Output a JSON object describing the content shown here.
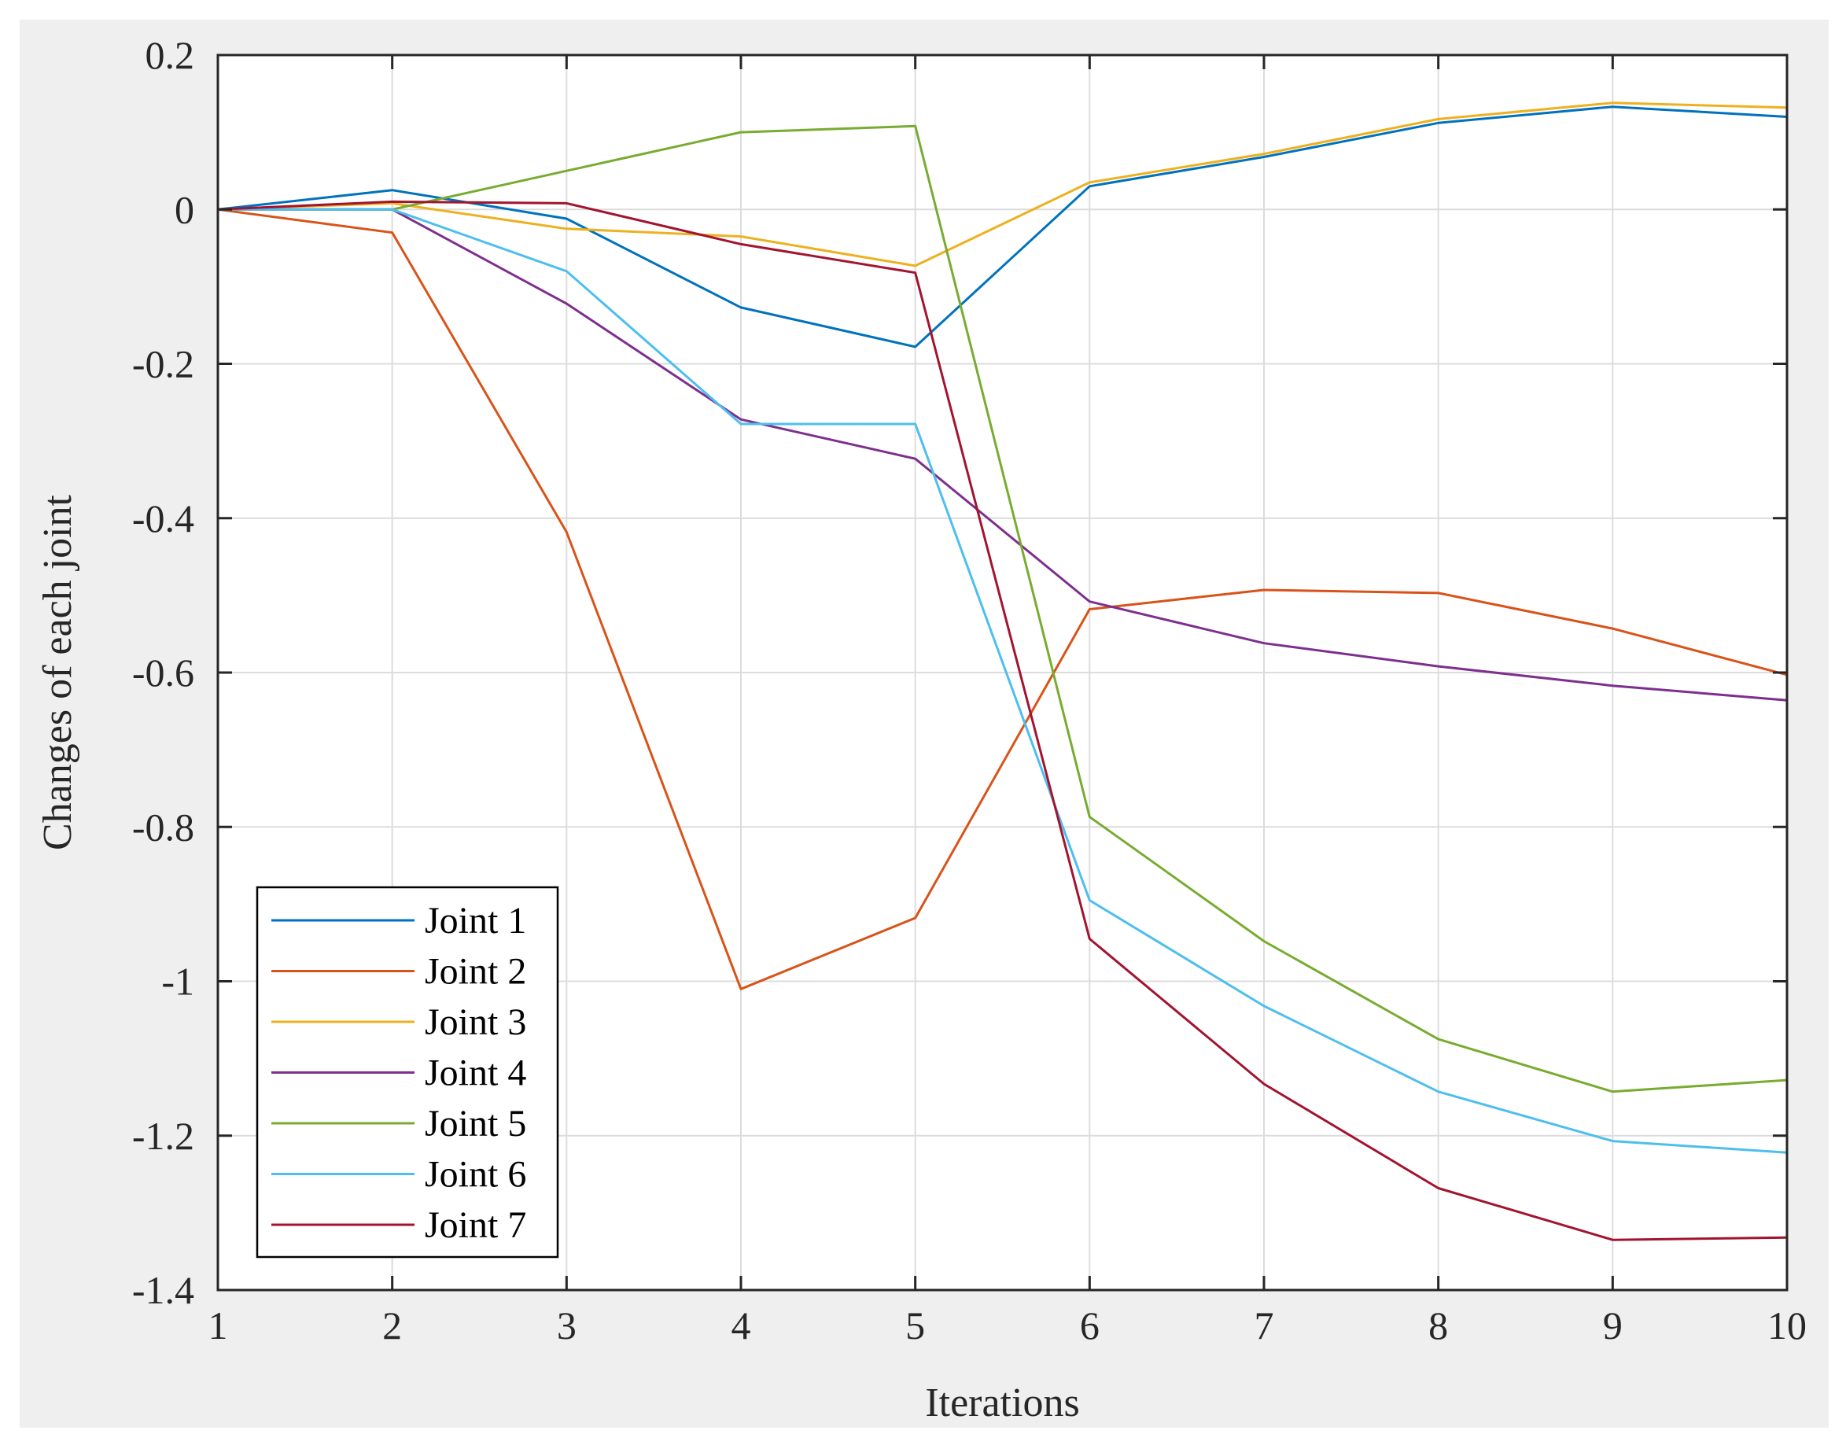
{
  "chart_data": {
    "type": "line",
    "title": "",
    "xlabel": "Iterations",
    "ylabel": "Changes of each joint",
    "xlim": [
      1,
      10
    ],
    "ylim": [
      -1.4,
      0.2
    ],
    "xticks": [
      1,
      2,
      3,
      4,
      5,
      6,
      7,
      8,
      9,
      10
    ],
    "yticks": [
      0.2,
      0,
      -0.2,
      -0.4,
      -0.6,
      -0.8,
      -1,
      -1.2,
      -1.4
    ],
    "xtick_labels": [
      "1",
      "2",
      "3",
      "4",
      "5",
      "6",
      "7",
      "8",
      "9",
      "10"
    ],
    "ytick_labels": [
      "0.2",
      "0",
      "-0.2",
      "-0.4",
      "-0.6",
      "-0.8",
      "-1",
      "-1.2",
      "-1.4"
    ],
    "grid": true,
    "legend_position": "bottom-left",
    "x": [
      1,
      2,
      3,
      4,
      5,
      6,
      7,
      8,
      9,
      10
    ],
    "series": [
      {
        "name": "Joint 1",
        "color": "#0072BD",
        "values": [
          0,
          0.025,
          -0.012,
          -0.127,
          -0.178,
          0.03,
          0.068,
          0.112,
          0.133,
          0.12
        ]
      },
      {
        "name": "Joint 2",
        "color": "#D95319",
        "values": [
          0,
          -0.03,
          -0.418,
          -1.01,
          -0.918,
          -0.518,
          -0.493,
          -0.497,
          -0.543,
          -0.603
        ]
      },
      {
        "name": "Joint 3",
        "color": "#EDB120",
        "values": [
          0,
          0.008,
          -0.025,
          -0.035,
          -0.073,
          0.035,
          0.072,
          0.117,
          0.138,
          0.132
        ]
      },
      {
        "name": "Joint 4",
        "color": "#7E2F8E",
        "values": [
          0,
          0,
          -0.122,
          -0.272,
          -0.323,
          -0.508,
          -0.562,
          -0.592,
          -0.617,
          -0.636
        ]
      },
      {
        "name": "Joint 5",
        "color": "#77AC30",
        "values": [
          0,
          0,
          0.05,
          0.1,
          0.108,
          -0.787,
          -0.948,
          -1.075,
          -1.143,
          -1.128
        ]
      },
      {
        "name": "Joint 6",
        "color": "#4DBEEE",
        "values": [
          0,
          0,
          -0.08,
          -0.278,
          -0.278,
          -0.895,
          -1.032,
          -1.143,
          -1.207,
          -1.222
        ]
      },
      {
        "name": "Joint 7",
        "color": "#A2142F",
        "values": [
          0,
          0.01,
          0.008,
          -0.045,
          -0.082,
          -0.945,
          -1.133,
          -1.268,
          -1.335,
          -1.332
        ]
      }
    ]
  }
}
